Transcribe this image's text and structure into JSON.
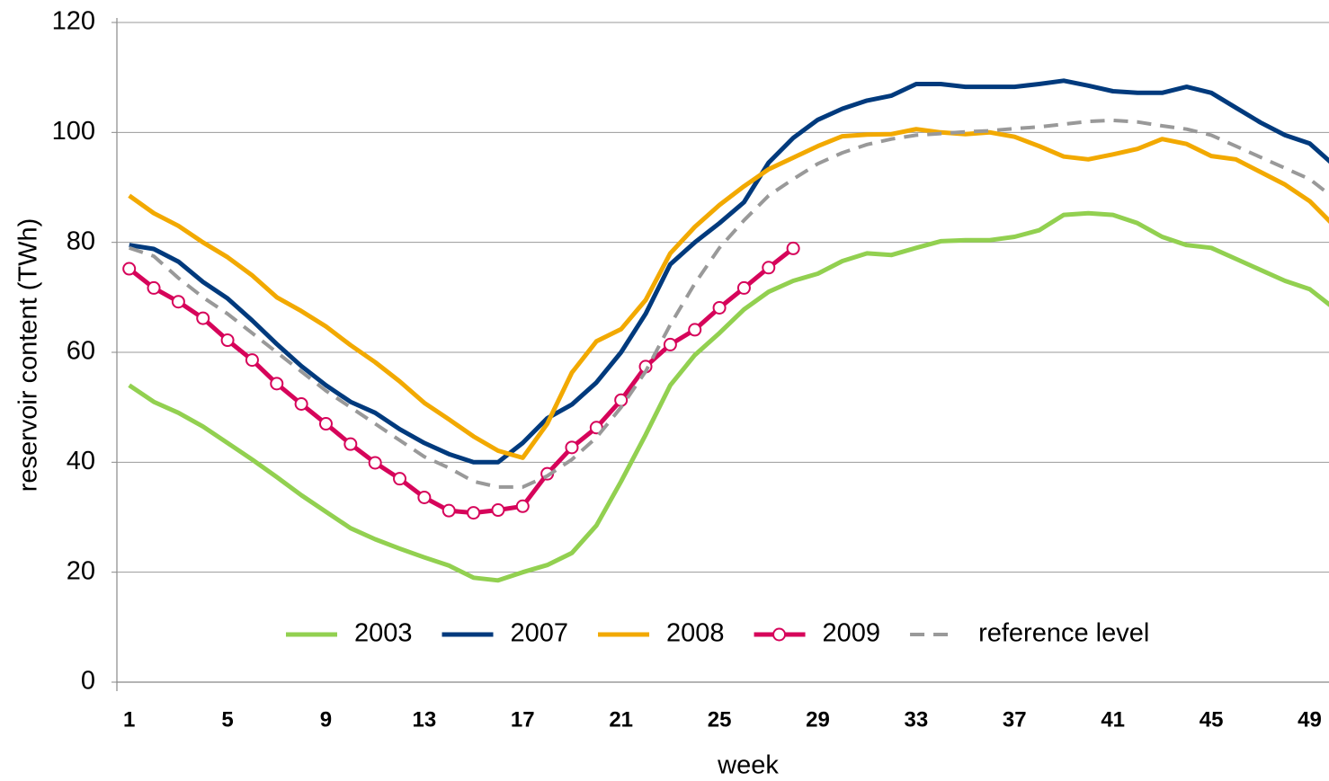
{
  "chart_data": {
    "type": "line",
    "y_label": "reservoir content (TWh)",
    "x_label": "week",
    "x": [
      1,
      2,
      3,
      4,
      5,
      6,
      7,
      8,
      9,
      10,
      11,
      12,
      13,
      14,
      15,
      16,
      17,
      18,
      19,
      20,
      21,
      22,
      23,
      24,
      25,
      26,
      27,
      28,
      29,
      30,
      31,
      32,
      33,
      34,
      35,
      36,
      37,
      38,
      39,
      40,
      41,
      42,
      43,
      44,
      45,
      46,
      47,
      48,
      49,
      50
    ],
    "xlim": [
      0.5,
      49.3
    ],
    "xticks": [
      1,
      5,
      9,
      13,
      17,
      21,
      25,
      29,
      33,
      37,
      41,
      45,
      49
    ],
    "ylim": [
      0,
      120
    ],
    "yticks": [
      0,
      20,
      40,
      60,
      80,
      100,
      120
    ],
    "grid": true,
    "legend": "bottom",
    "series": [
      {
        "name": "2003",
        "color": "#92d050",
        "style": "solid",
        "values": [
          54,
          51,
          49,
          46.5,
          43.5,
          40.5,
          37.3,
          34,
          31,
          28,
          26,
          24.3,
          22.7,
          21.2,
          19,
          18.5,
          20,
          21.3,
          23.5,
          28.5,
          36.5,
          45,
          54,
          59.5,
          63.5,
          67.8,
          71,
          73,
          74.3,
          76.6,
          78,
          77.7,
          79,
          80.2,
          80.4,
          80.4,
          81,
          82.2,
          85,
          85.3,
          85,
          83.5,
          81,
          79.5,
          79,
          77,
          75,
          73,
          71.5,
          68
        ]
      },
      {
        "name": "2007",
        "color": "#003a7d",
        "style": "solid",
        "values": [
          79.5,
          78.8,
          76.5,
          72.8,
          69.8,
          65.8,
          61.5,
          57.5,
          54,
          51,
          49,
          46,
          43.5,
          41.5,
          40,
          40,
          43.5,
          48,
          50.5,
          54.5,
          60,
          67,
          76,
          80,
          83.5,
          87.3,
          94.5,
          99,
          102.3,
          104.3,
          105.8,
          106.7,
          108.8,
          108.8,
          108.3,
          108.3,
          108.3,
          108.8,
          109.4,
          108.5,
          107.5,
          107.2,
          107.2,
          108.3,
          107.2,
          104.5,
          101.8,
          99.5,
          98,
          94
        ]
      },
      {
        "name": "2008",
        "color": "#f2a900",
        "style": "solid",
        "values": [
          88.5,
          85.3,
          83,
          80,
          77.3,
          74,
          70,
          67.5,
          64.7,
          61.3,
          58.2,
          54.7,
          50.8,
          47.8,
          44.7,
          42.1,
          40.8,
          47,
          56.3,
          62,
          64.2,
          69.5,
          78,
          82.8,
          86.8,
          90.2,
          93.3,
          95.4,
          97.5,
          99.3,
          99.6,
          99.7,
          100.6,
          100,
          99.7,
          100,
          99.2,
          97.5,
          95.6,
          95.1,
          96,
          97,
          98.8,
          97.9,
          95.7,
          95.1,
          92.8,
          90.5,
          87.5,
          83
        ]
      },
      {
        "name": "2009",
        "color": "#d6045a",
        "style": "markers",
        "values": [
          75.2,
          71.7,
          69.2,
          66.2,
          62.2,
          58.6,
          54.3,
          50.6,
          47,
          43.3,
          39.9,
          37,
          33.6,
          31.2,
          30.8,
          31.3,
          32,
          37.9,
          42.7,
          46.3,
          51.3,
          57.4,
          61.4,
          64.1,
          68.1,
          71.7,
          75.4,
          78.9,
          null,
          null,
          null,
          null,
          null,
          null,
          null,
          null,
          null,
          null,
          null,
          null,
          null,
          null,
          null,
          null,
          null,
          null,
          null,
          null,
          null,
          null
        ]
      },
      {
        "name": "reference level",
        "color": "#999999",
        "style": "dashed",
        "values": [
          79,
          77.5,
          73.5,
          70,
          67,
          63.5,
          60,
          56.5,
          53,
          50,
          47,
          44,
          41,
          39,
          36.5,
          35.5,
          35.5,
          37.5,
          40.5,
          44.5,
          50,
          56.5,
          65,
          72.5,
          79,
          84,
          88.5,
          91.5,
          94.3,
          96.3,
          97.8,
          98.8,
          99.5,
          99.8,
          100.1,
          100.3,
          100.7,
          101,
          101.5,
          102,
          102.2,
          101.9,
          101.2,
          100.6,
          99.5,
          97.5,
          95.5,
          93.5,
          91.5,
          88
        ]
      }
    ]
  }
}
